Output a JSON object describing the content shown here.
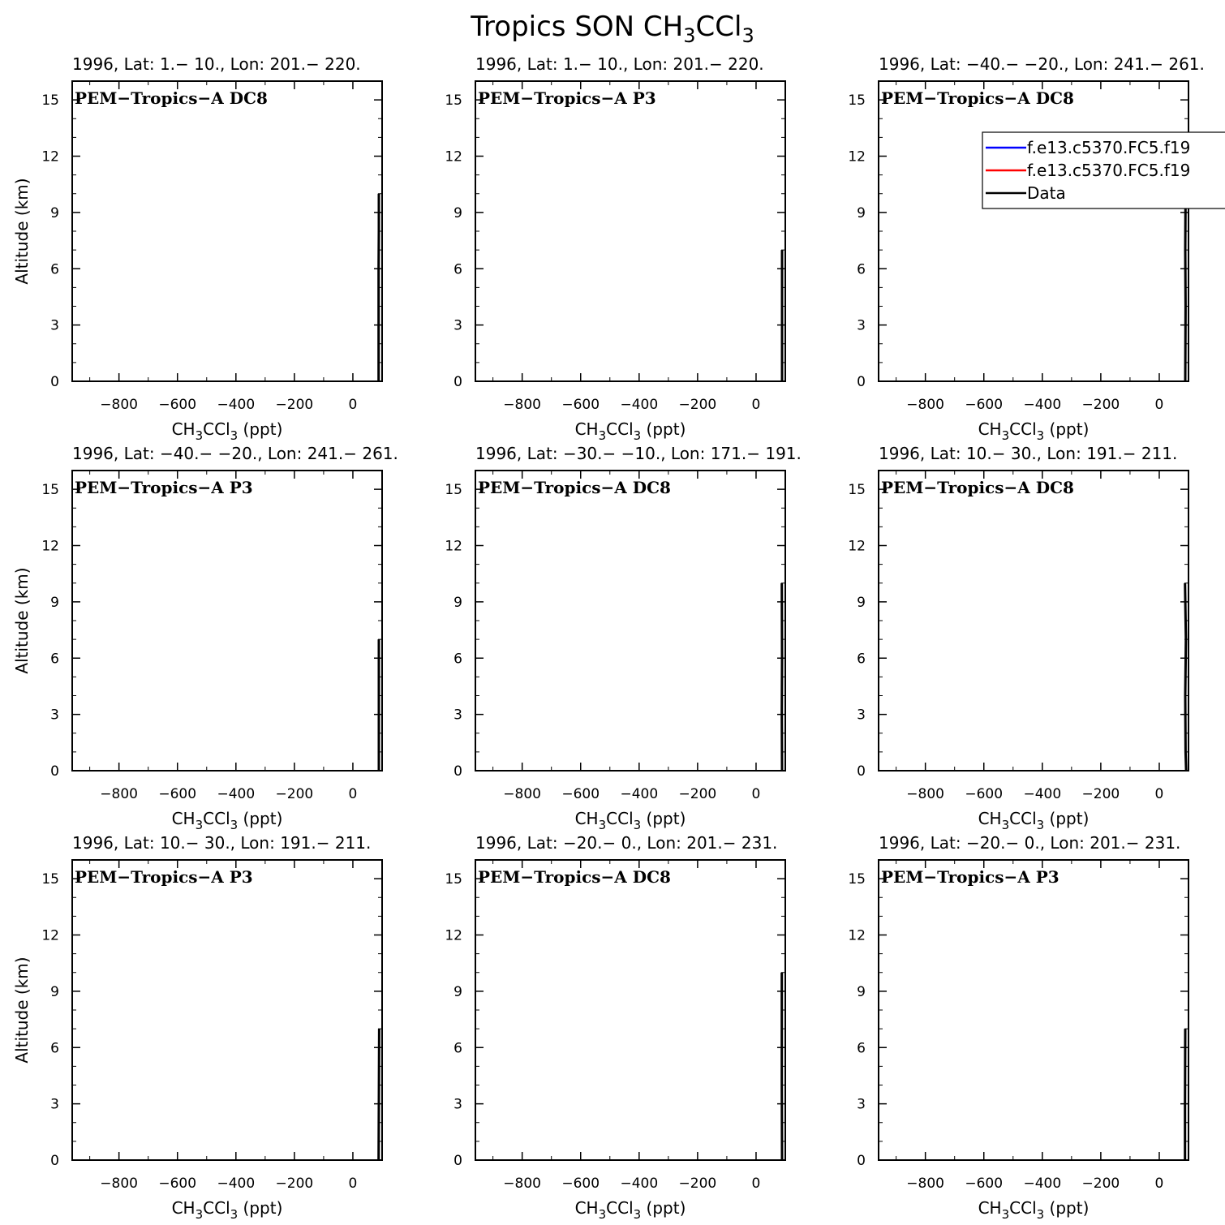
{
  "figure": {
    "title_main": "Tropics SON CH",
    "title_sub1": "3",
    "title_mid": "CCl",
    "title_sub2": "3"
  },
  "axis_text": {
    "ylabel": "Altitude (km)",
    "xlabel_main": "CH",
    "xlabel_sub1": "3",
    "xlabel_mid": "CCl",
    "xlabel_sub2": "3",
    "xlabel_unit": " (ppt)"
  },
  "legend": {
    "entries": [
      {
        "label": "f.e13.c5370.FC5.f19",
        "color": "#0000ff"
      },
      {
        "label": "f.e13.c5370.FC5.f19",
        "color": "#ff0000"
      },
      {
        "label": "Data",
        "color": "#000000"
      }
    ]
  },
  "chart_data": [
    {
      "type": "line",
      "title": "1996, Lat: 1.− 10., Lon: 201.− 220.",
      "campaign": "PEM−Tropics−A DC8",
      "xlim": [
        -960,
        100
      ],
      "ylim": [
        0,
        16
      ],
      "xticks": [
        -800,
        -600,
        -400,
        -200,
        0
      ],
      "yticks": [
        0,
        3,
        6,
        9,
        12,
        15
      ],
      "series": [
        {
          "name": "Data",
          "color": "#000000",
          "x": [
            88,
            88,
            89,
            89
          ],
          "y": [
            0,
            6,
            8,
            10
          ]
        }
      ]
    },
    {
      "type": "line",
      "title": "1996, Lat: 1.− 10., Lon: 201.− 220.",
      "campaign": "PEM−Tropics−A P3",
      "xlim": [
        -960,
        100
      ],
      "ylim": [
        0,
        16
      ],
      "xticks": [
        -800,
        -600,
        -400,
        -200,
        0
      ],
      "yticks": [
        0,
        3,
        6,
        9,
        12,
        15
      ],
      "series": [
        {
          "name": "Data",
          "color": "#000000",
          "x": [
            89,
            89,
            89
          ],
          "y": [
            0,
            4,
            7
          ]
        }
      ]
    },
    {
      "type": "line",
      "title": "1996, Lat: −40.− −20., Lon: 241.− 261.",
      "campaign": "PEM−Tropics−A DC8",
      "xlim": [
        -960,
        100
      ],
      "ylim": [
        0,
        16
      ],
      "xticks": [
        -800,
        -600,
        -400,
        -200,
        0
      ],
      "yticks": [
        0,
        3,
        6,
        9,
        12,
        15
      ],
      "series": [
        {
          "name": "Data",
          "color": "#000000",
          "x": [
            89,
            90,
            89,
            90
          ],
          "y": [
            0,
            4,
            7,
            10
          ]
        }
      ]
    },
    {
      "type": "line",
      "title": "1996, Lat: −40.− −20., Lon: 241.− 261.",
      "campaign": "PEM−Tropics−A P3",
      "xlim": [
        -960,
        100
      ],
      "ylim": [
        0,
        16
      ],
      "xticks": [
        -800,
        -600,
        -400,
        -200,
        0
      ],
      "yticks": [
        0,
        3,
        6,
        9,
        12,
        15
      ],
      "series": [
        {
          "name": "Data",
          "color": "#000000",
          "x": [
            89,
            89,
            89
          ],
          "y": [
            0,
            3,
            7
          ]
        }
      ]
    },
    {
      "type": "line",
      "title": "1996, Lat: −30.− −10., Lon: 171.− 191.",
      "campaign": "PEM−Tropics−A DC8",
      "xlim": [
        -960,
        100
      ],
      "ylim": [
        0,
        16
      ],
      "xticks": [
        -800,
        -600,
        -400,
        -200,
        0
      ],
      "yticks": [
        0,
        3,
        6,
        9,
        12,
        15
      ],
      "series": [
        {
          "name": "Data",
          "color": "#000000",
          "x": [
            89,
            88,
            89,
            88
          ],
          "y": [
            0,
            3,
            6,
            10
          ]
        }
      ]
    },
    {
      "type": "line",
      "title": "1996, Lat: 10.− 30., Lon: 191.− 211.",
      "campaign": "PEM−Tropics−A DC8",
      "xlim": [
        -960,
        100
      ],
      "ylim": [
        0,
        16
      ],
      "xticks": [
        -800,
        -600,
        -400,
        -200,
        0
      ],
      "yticks": [
        0,
        3,
        6,
        9,
        12,
        15
      ],
      "series": [
        {
          "name": "Data",
          "color": "#000000",
          "x": [
            92,
            90,
            89,
            91,
            88
          ],
          "y": [
            0,
            1,
            4,
            7,
            10
          ]
        }
      ]
    },
    {
      "type": "line",
      "title": "1996, Lat: 10.− 30., Lon: 191.− 211.",
      "campaign": "PEM−Tropics−A P3",
      "xlim": [
        -960,
        100
      ],
      "ylim": [
        0,
        16
      ],
      "xticks": [
        -800,
        -600,
        -400,
        -200,
        0
      ],
      "yticks": [
        0,
        3,
        6,
        9,
        12,
        15
      ],
      "series": [
        {
          "name": "Data",
          "color": "#000000",
          "x": [
            88,
            89,
            90
          ],
          "y": [
            0,
            3,
            7
          ]
        }
      ]
    },
    {
      "type": "line",
      "title": "1996, Lat: −20.− 0., Lon: 201.− 231.",
      "campaign": "PEM−Tropics−A DC8",
      "xlim": [
        -960,
        100
      ],
      "ylim": [
        0,
        16
      ],
      "xticks": [
        -800,
        -600,
        -400,
        -200,
        0
      ],
      "yticks": [
        0,
        3,
        6,
        9,
        12,
        15
      ],
      "series": [
        {
          "name": "Data",
          "color": "#000000",
          "x": [
            89,
            88,
            88,
            88
          ],
          "y": [
            0,
            4,
            7,
            10
          ]
        }
      ]
    },
    {
      "type": "line",
      "title": "1996, Lat: −20.− 0., Lon: 201.− 231.",
      "campaign": "PEM−Tropics−A P3",
      "xlim": [
        -960,
        100
      ],
      "ylim": [
        0,
        16
      ],
      "xticks": [
        -800,
        -600,
        -400,
        -200,
        0
      ],
      "yticks": [
        0,
        3,
        6,
        9,
        12,
        15
      ],
      "series": [
        {
          "name": "Data",
          "color": "#000000",
          "x": [
            88,
            88,
            89
          ],
          "y": [
            0,
            3,
            7
          ]
        }
      ]
    }
  ]
}
